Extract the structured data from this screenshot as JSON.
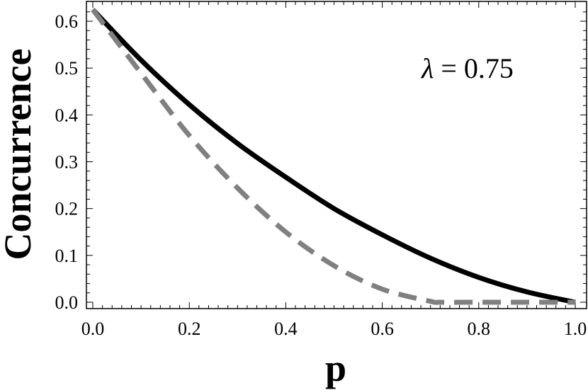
{
  "chart_data": {
    "type": "line",
    "title": "",
    "xlabel": "p",
    "ylabel": "Concurrence",
    "xlim": [
      0.0,
      1.0
    ],
    "ylim": [
      0.0,
      0.63
    ],
    "xticks": [
      "0.0",
      "0.2",
      "0.4",
      "0.6",
      "0.8",
      "1.0"
    ],
    "xtick_values": [
      0.0,
      0.2,
      0.4,
      0.6,
      0.8,
      1.0
    ],
    "yticks": [
      "0.0",
      "0.1",
      "0.2",
      "0.3",
      "0.4",
      "0.5",
      "0.6"
    ],
    "ytick_values": [
      0.0,
      0.1,
      0.2,
      0.3,
      0.4,
      0.5,
      0.6
    ],
    "annotation": {
      "symbol": "λ",
      "text": " = 0.75"
    },
    "grid": false,
    "series": [
      {
        "style": "solid",
        "color": "#000000",
        "x": [
          0.0,
          0.1,
          0.2,
          0.3,
          0.4,
          0.5,
          0.6,
          0.7,
          0.8,
          0.9,
          1.0
        ],
        "y": [
          0.625,
          0.517,
          0.422,
          0.339,
          0.267,
          0.2,
          0.144,
          0.094,
          0.053,
          0.022,
          0.0
        ]
      },
      {
        "style": "dashed",
        "color": "#808080",
        "x": [
          0.0,
          0.1,
          0.2,
          0.3,
          0.4,
          0.5,
          0.6,
          0.7,
          0.72,
          0.8,
          0.9,
          1.0
        ],
        "y": [
          0.625,
          0.489,
          0.356,
          0.244,
          0.15,
          0.078,
          0.028,
          0.002,
          0.0,
          0.0,
          0.0,
          0.0
        ]
      }
    ]
  }
}
